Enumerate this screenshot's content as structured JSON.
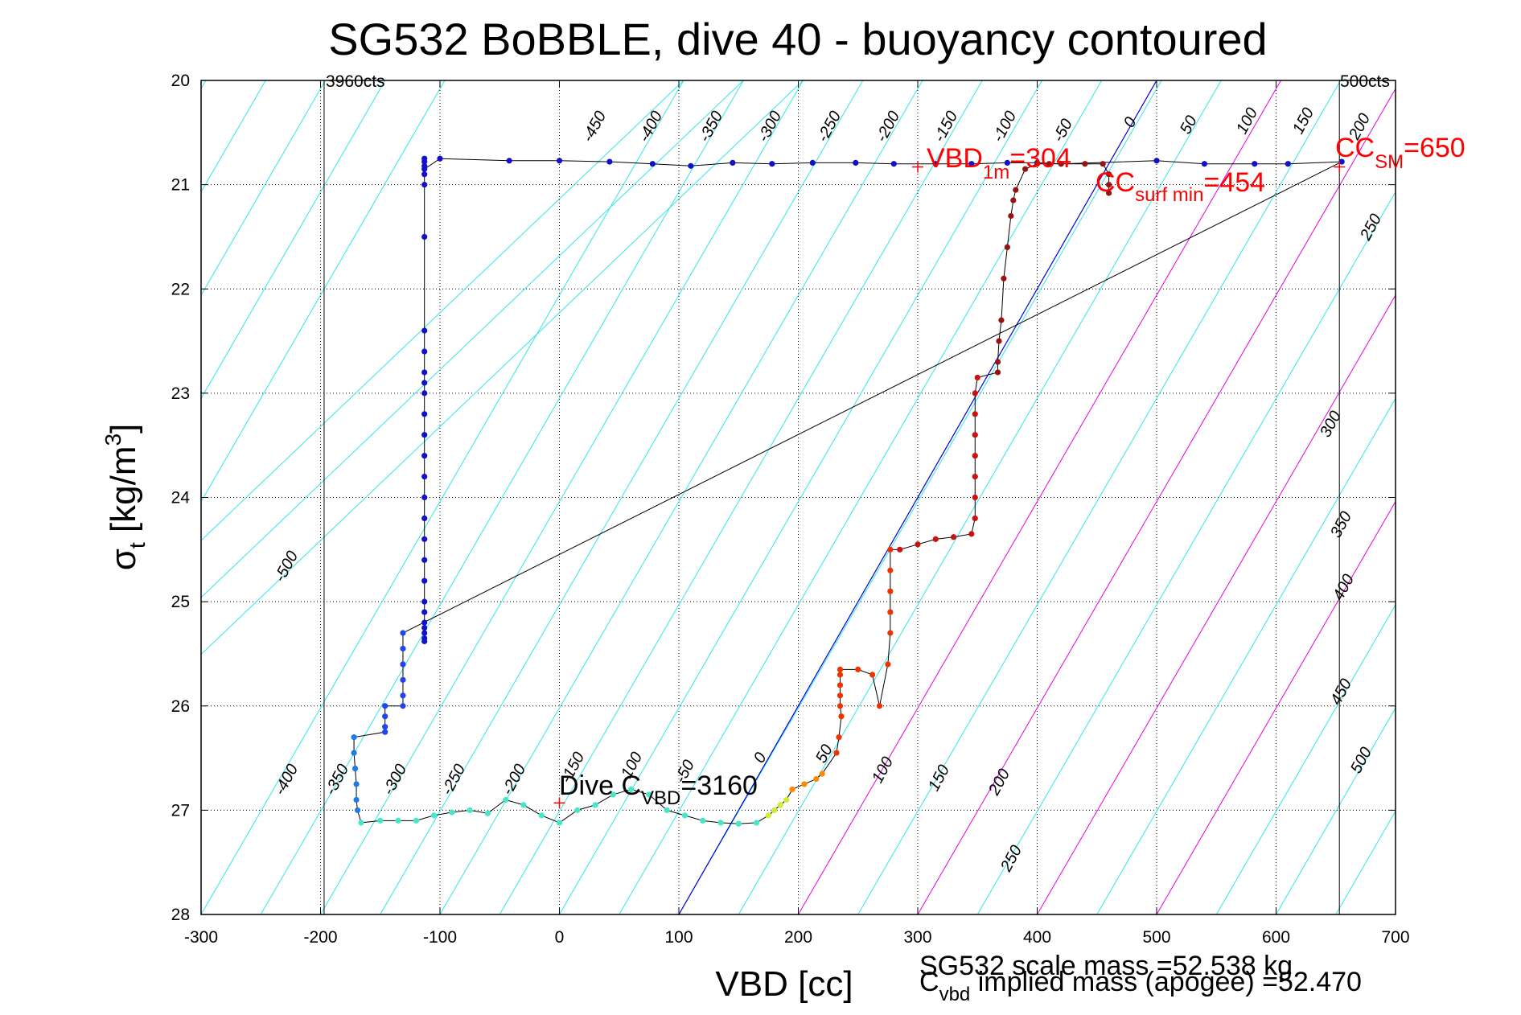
{
  "chart_data": {
    "type": "scatter",
    "title": "SG532 BoBBLE, dive 40 - buoyancy contoured",
    "xlabel": "VBD [cc]",
    "ylabel": "σt [kg/m³]",
    "ylabel_main": "σ",
    "ylabel_sub": "t",
    "ylabel_unit": " [kg/m",
    "ylabel_sup": "3",
    "ylabel_close": "]",
    "xlim": [
      -300,
      700
    ],
    "ylim": [
      28,
      20
    ],
    "y_reversed": true,
    "xticks": [
      -300,
      -200,
      -100,
      0,
      100,
      200,
      300,
      400,
      500,
      600,
      700
    ],
    "yticks": [
      20,
      21,
      22,
      23,
      24,
      25,
      26,
      27,
      28
    ],
    "grid": true,
    "colors": {
      "contour": "#33e6e6",
      "contour_alt": "#e600e6",
      "reference_line": "#0000dd",
      "marker": "#ff0000",
      "connector": "#000000",
      "annotation": "#ff0000"
    },
    "count_lines": [
      {
        "x": -197,
        "label": "3960cts"
      },
      {
        "x": 653,
        "label": "500cts"
      }
    ],
    "contour_slope": 0.4643,
    "contours_lower": {
      "labels": [
        "-500",
        "-400",
        "-350",
        "-300",
        "-250",
        "-200",
        "-150",
        "-100",
        "-50",
        "0",
        "50",
        "100",
        "150",
        "200",
        "250",
        "300",
        "350",
        "400",
        "450",
        "500"
      ],
      "x_at_27": [
        -232,
        -232,
        -180,
        -125,
        -70,
        -20,
        30,
        80,
        130,
        180,
        230,
        280,
        330,
        380,
        420,
        635,
        650,
        650,
        650,
        650
      ]
    },
    "contours_upper": {
      "labels": [
        "-450",
        "-400",
        "-350",
        "-300",
        "-250",
        "-200",
        "-150",
        "-100",
        "-50",
        "0",
        "50",
        "100",
        "150",
        "200",
        "250"
      ],
      "x_at_20_5": [
        30,
        80,
        130,
        180,
        230,
        280,
        330,
        380,
        430,
        480,
        530,
        580,
        630,
        660,
        665
      ]
    },
    "contour_x_positions_at_y28": [
      -300,
      -250,
      -200,
      -150,
      -100,
      -50,
      0,
      50,
      100,
      150,
      200,
      250,
      300,
      350,
      400,
      450,
      500,
      550,
      600,
      650,
      700
    ],
    "alt_contour_x_at_y28": [
      200,
      300,
      400,
      500
    ],
    "reference_line": {
      "x1": 100,
      "y1": 28,
      "x2": 500,
      "y2": 20
    },
    "labels_upper_values": [
      "-450",
      "-400",
      "-350",
      "-300",
      "-250",
      "-200",
      "-150",
      "-100",
      "-50",
      "0",
      "50",
      "100",
      "150",
      "200"
    ],
    "labels_right_values": [
      "250",
      "300",
      "350",
      "400",
      "450",
      "500"
    ],
    "labels_left_values": [
      "-500",
      "-400",
      "-350",
      "-300",
      "-250",
      "-200",
      "-150",
      "-100",
      "-50",
      "0",
      "50",
      "100",
      "150",
      "200",
      "250"
    ],
    "series": [
      {
        "color": "#1111cc",
        "x": [
          -113,
          -113,
          -113,
          -113,
          -113,
          -113,
          -113,
          -113,
          -113,
          -113,
          -113,
          -113,
          -113,
          -113,
          -113,
          -113,
          -113,
          -113,
          -113,
          -113,
          -113,
          -113,
          -113,
          -113,
          -113,
          -113,
          -113,
          -113
        ],
        "y": [
          20.75,
          20.82,
          20.9,
          21.0,
          21.5,
          22.4,
          22.6,
          22.8,
          22.9,
          23.0,
          23.2,
          23.4,
          23.6,
          23.8,
          24.0,
          24.2,
          24.4,
          24.6,
          24.8,
          25.0,
          25.1,
          25.2,
          25.25,
          25.3,
          25.35,
          25.38,
          20.78,
          20.85
        ]
      },
      {
        "color": "#1111cc",
        "x": [
          -100,
          -42,
          0,
          42,
          78,
          110,
          145,
          178,
          212,
          248,
          280,
          315,
          345,
          375,
          400,
          420
        ],
        "y": [
          20.75,
          20.77,
          20.77,
          20.78,
          20.8,
          20.82,
          20.79,
          20.8,
          20.79,
          20.79,
          20.8,
          20.8,
          20.8,
          20.79,
          20.79,
          20.8
        ]
      },
      {
        "color": "#1111cc",
        "x": [
          500,
          540,
          582,
          610,
          655
        ],
        "y": [
          20.77,
          20.8,
          20.8,
          20.8,
          20.78
        ]
      },
      {
        "color": "#2244ee",
        "x": [
          -131,
          -131,
          -131,
          -131,
          -131,
          -131,
          -146,
          -146,
          -146,
          -146
        ],
        "y": [
          25.3,
          25.45,
          25.6,
          25.75,
          25.9,
          26.0,
          26.0,
          26.1,
          26.2,
          26.25
        ]
      },
      {
        "color": "#1e7ae6",
        "x": [
          -172,
          -172,
          -171,
          -170,
          -170,
          -169
        ],
        "y": [
          26.3,
          26.45,
          26.6,
          26.75,
          26.9,
          27.0
        ]
      },
      {
        "color": "#44e8c8",
        "x": [
          -166,
          -150,
          -135,
          -120,
          -105,
          -90,
          -75,
          -60,
          -45,
          -30,
          -15,
          0,
          15,
          30,
          45,
          60,
          75,
          90,
          105,
          120,
          135,
          150,
          165
        ],
        "y": [
          27.12,
          27.1,
          27.1,
          27.1,
          27.05,
          27.02,
          27.0,
          27.03,
          26.9,
          26.95,
          27.05,
          27.12,
          27.0,
          26.95,
          26.85,
          26.8,
          26.85,
          27.0,
          27.05,
          27.1,
          27.12,
          27.13,
          27.12
        ]
      },
      {
        "color": "#ccee33",
        "x": [
          175,
          180,
          185,
          190
        ],
        "y": [
          27.05,
          27.0,
          26.95,
          26.9
        ]
      },
      {
        "color": "#ff8800",
        "x": [
          195,
          205,
          215,
          220
        ],
        "y": [
          26.8,
          26.75,
          26.7,
          26.65
        ]
      },
      {
        "color": "#ee3300",
        "x": [
          232,
          234,
          236,
          235,
          235,
          235,
          235,
          235,
          250,
          262,
          268,
          275,
          277,
          277,
          277,
          277,
          277
        ],
        "y": [
          26.45,
          26.3,
          26.1,
          26.0,
          25.9,
          25.8,
          25.7,
          25.65,
          25.65,
          25.7,
          26.0,
          25.6,
          25.3,
          25.1,
          24.9,
          24.7,
          24.5
        ]
      },
      {
        "color": "#cc1111",
        "x": [
          285,
          300,
          315,
          330,
          345,
          348,
          348,
          348,
          348,
          348,
          348,
          348,
          350
        ],
        "y": [
          24.5,
          24.45,
          24.4,
          24.38,
          24.35,
          24.2,
          24.0,
          23.8,
          23.6,
          23.4,
          23.2,
          23.0,
          22.85
        ]
      },
      {
        "color": "#991111",
        "x": [
          367,
          367,
          368,
          370,
          372,
          375,
          378,
          380,
          382,
          390,
          400,
          410,
          420,
          440,
          455,
          460,
          460,
          460
        ],
        "y": [
          22.8,
          22.7,
          22.5,
          22.3,
          21.9,
          21.6,
          21.3,
          21.15,
          21.05,
          20.85,
          20.8,
          20.8,
          20.8,
          20.8,
          20.8,
          20.9,
          21.0,
          21.08
        ]
      }
    ],
    "markers": [
      {
        "x": 300,
        "y": 20.83
      },
      {
        "x": 0,
        "y": 26.93
      },
      {
        "x": 653,
        "y": 20.83
      }
    ],
    "annotations": {
      "vbd_prefix": "VBD",
      "vbd_sub": "1m",
      "vbd_value": "=304",
      "cc_surf_prefix": "CC",
      "cc_surf_sub": "surf min",
      "cc_surf_value": "=454",
      "cc_sm_prefix": "CC",
      "cc_sm_sub": "SM",
      "cc_sm_value": "=650",
      "dive_prefix": "Dive C",
      "dive_sub": "VBD",
      "dive_value": "=3160"
    },
    "footer": {
      "line1": "SG532 scale mass =52.538 kg",
      "line2_prefix": "C",
      "line2_sub": "vbd",
      "line2_suffix": " implied mass (apogee) =52.470"
    }
  }
}
